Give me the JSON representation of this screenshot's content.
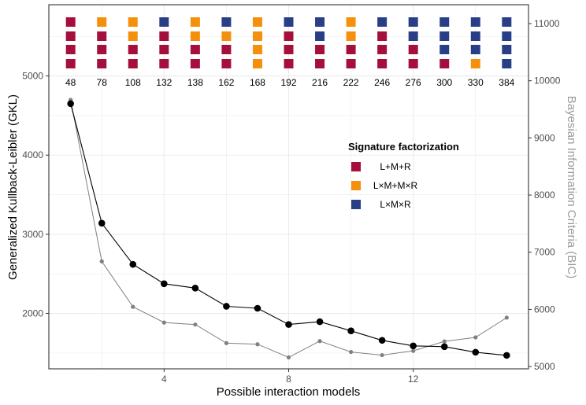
{
  "chart_data": {
    "type": "line",
    "xlabel": "Possible interaction models",
    "ylabel": "Generalized Kullback-Leibler (GKL)",
    "ylabel_right": "Bayesian Information Criteria (BIC)",
    "xlim": [
      0.3,
      15.7
    ],
    "ylim": [
      1300,
      5900
    ],
    "ylim_right": [
      4960,
      11330
    ],
    "x_ticks": [
      4,
      8,
      12
    ],
    "y_ticks": [
      2000,
      3000,
      4000,
      5000
    ],
    "y_ticks_right": [
      5000,
      6000,
      7000,
      8000,
      9000,
      10000,
      11000
    ],
    "grid": true,
    "series": [
      {
        "axis": "left",
        "color": "#000000",
        "x": [
          1,
          2,
          3,
          4,
          5,
          6,
          7,
          8,
          9,
          10,
          11,
          12,
          13,
          14,
          15
        ],
        "values": [
          4650,
          3140,
          2620,
          2375,
          2320,
          2090,
          2065,
          1860,
          1895,
          1780,
          1660,
          1590,
          1580,
          1510,
          1470
        ]
      },
      {
        "axis": "right",
        "color": "#808080",
        "x": [
          1,
          2,
          3,
          4,
          5,
          6,
          7,
          8,
          9,
          10,
          11,
          12,
          13,
          14,
          15
        ],
        "values": [
          9665,
          6840,
          6045,
          5770,
          5735,
          5410,
          5390,
          5160,
          5445,
          5255,
          5200,
          5275,
          5440,
          5510,
          5855
        ]
      }
    ],
    "model_counts": [
      "48",
      "78",
      "108",
      "132",
      "138",
      "162",
      "168",
      "192",
      "216",
      "222",
      "246",
      "276",
      "300",
      "330",
      "384"
    ],
    "signature_grid": [
      [
        "red",
        "orange",
        "orange",
        "blue",
        "orange",
        "blue",
        "orange",
        "blue",
        "blue",
        "orange",
        "blue",
        "blue",
        "blue",
        "blue",
        "blue"
      ],
      [
        "red",
        "red",
        "orange",
        "red",
        "orange",
        "orange",
        "orange",
        "red",
        "blue",
        "orange",
        "red",
        "blue",
        "blue",
        "blue",
        "blue"
      ],
      [
        "red",
        "red",
        "red",
        "red",
        "red",
        "red",
        "orange",
        "red",
        "red",
        "red",
        "red",
        "red",
        "blue",
        "blue",
        "blue"
      ],
      [
        "red",
        "red",
        "red",
        "red",
        "red",
        "red",
        "orange",
        "red",
        "red",
        "red",
        "red",
        "red",
        "red",
        "orange",
        "blue"
      ]
    ],
    "legend": {
      "title": "Signature factorization",
      "placement": "right-center",
      "items": [
        {
          "label": "L+M+R",
          "color_key": "red"
        },
        {
          "label": "L×M+M×R",
          "color_key": "orange"
        },
        {
          "label": "L×M×R",
          "color_key": "blue"
        }
      ]
    },
    "colors": {
      "red": "#A50F3C",
      "orange": "#F5900D",
      "blue": "#283F87"
    }
  }
}
